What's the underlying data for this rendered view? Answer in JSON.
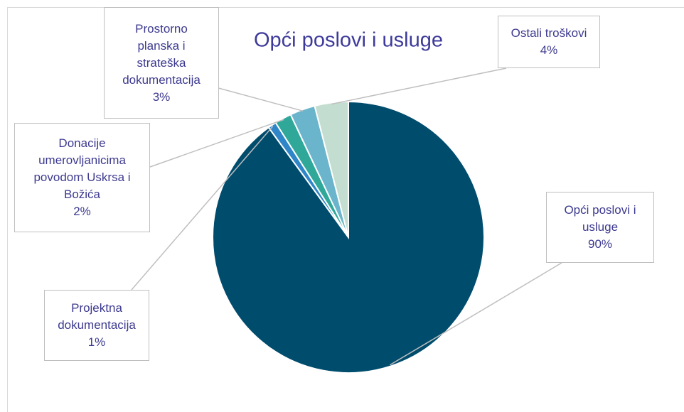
{
  "chart_data": {
    "type": "pie",
    "title": "Opći poslovi i usluge",
    "categories": [
      "Opći poslovi i usluge",
      "Projektna dokumentacija",
      "Donacije umerovljanicima povodom Uskrsa i Božića",
      "Prostorno planska i strateška dokumentacija",
      "Ostali troškovi"
    ],
    "values": [
      90,
      1,
      2,
      3,
      4
    ],
    "value_labels": [
      "90%",
      "1%",
      "2%",
      "3%",
      "4%"
    ],
    "colors": [
      "#004c6d",
      "#2e86c8",
      "#2fa89a",
      "#6ab4cc",
      "#c3ddd0"
    ]
  }
}
